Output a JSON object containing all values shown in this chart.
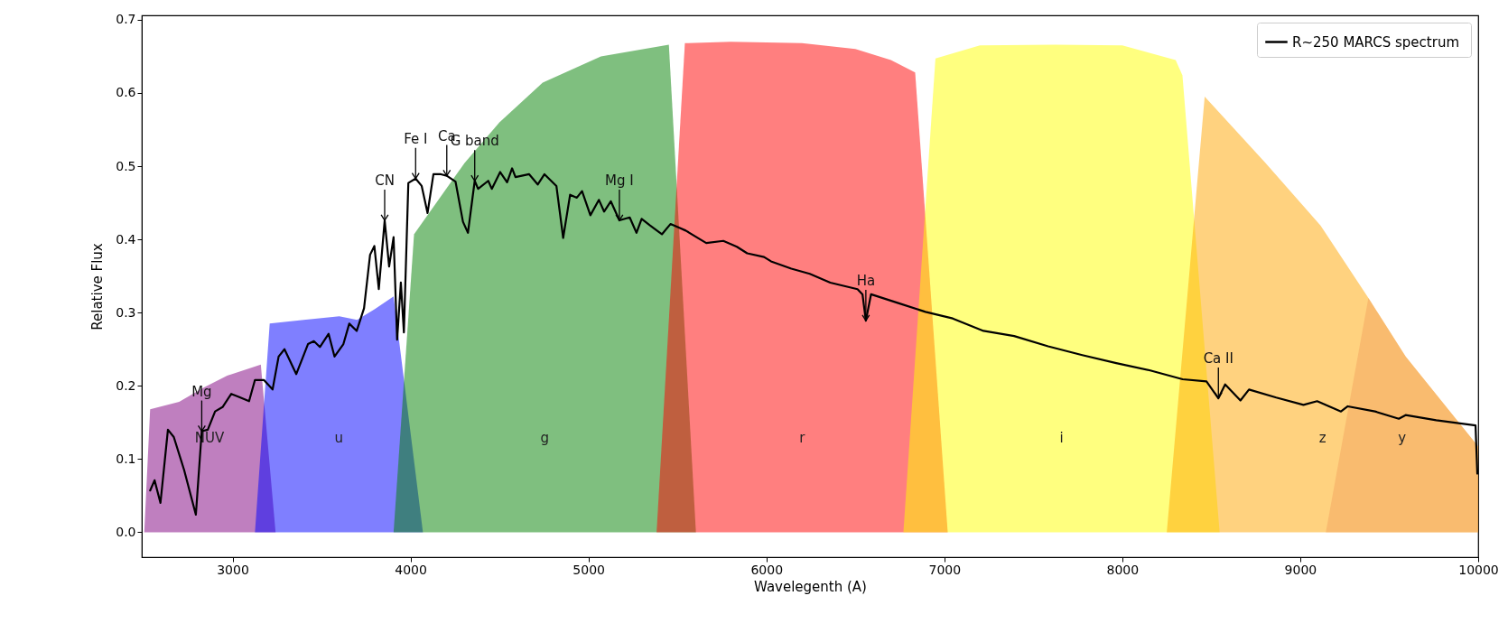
{
  "chart_data": {
    "type": "line",
    "xlabel": "Wavelegenth (A)",
    "ylabel": "Relative Flux",
    "xlim": [
      2490,
      10000
    ],
    "ylim": [
      -0.034,
      0.706
    ],
    "xticks": [
      3000,
      4000,
      5000,
      6000,
      7000,
      8000,
      9000,
      10000
    ],
    "yticks": [
      {
        "value": 0,
        "label": "0.0"
      },
      0.1,
      0.2,
      0.3,
      0.4,
      0.5,
      0.6,
      0.7
    ],
    "legend": "top right",
    "grid": false,
    "series": [
      {
        "name": "NUV",
        "type": "area",
        "color": "#800080",
        "x": [
          2500,
          2504,
          2537,
          2700,
          2840,
          2970,
          3159,
          3242
        ],
        "values": [
          0,
          0.0,
          0.168,
          0.178,
          0.198,
          0.214,
          0.229,
          0
        ]
      },
      {
        "name": "u",
        "type": "area",
        "color": "#0000ff",
        "x": [
          3126,
          3209,
          3400,
          3600,
          3700,
          3800,
          3905,
          4070
        ],
        "values": [
          0,
          0.285,
          0.29,
          0.295,
          0.29,
          0.305,
          0.322,
          0
        ]
      },
      {
        "name": "g",
        "type": "area",
        "color": "#008000",
        "x": [
          3905,
          4020,
          4303,
          4500,
          4743,
          5070,
          5452,
          5604
        ],
        "values": [
          0,
          0.407,
          0.504,
          0.56,
          0.614,
          0.65,
          0.666,
          0
        ]
      },
      {
        "name": "r",
        "type": "area",
        "color": "#ff0000",
        "x": [
          5383,
          5542,
          5800,
          6200,
          6500,
          6700,
          6836,
          7019
        ],
        "values": [
          0,
          0.668,
          0.67,
          0.668,
          0.66,
          0.645,
          0.628,
          0
        ]
      },
      {
        "name": "i",
        "type": "area",
        "color": "#ffff00",
        "x": [
          6770,
          6950,
          7200,
          7622,
          8000,
          8300,
          8338,
          8547
        ],
        "values": [
          0,
          0.647,
          0.665,
          0.666,
          0.665,
          0.645,
          0.624,
          0
        ]
      },
      {
        "name": "z",
        "type": "area",
        "color": "#ffa500",
        "x": [
          8250,
          8463,
          8806,
          9114,
          9383,
          9592,
          10000
        ],
        "values": [
          0,
          0.595,
          0.504,
          0.419,
          0.32,
          0.24,
          0.117
        ]
      },
      {
        "name": "y",
        "type": "area",
        "color": "#f4a460",
        "x": [
          9144,
          9383,
          9592,
          10000
        ],
        "values": [
          0,
          0.32,
          0.24,
          0.117
        ]
      },
      {
        "name": "R~250  MARCS spectrum",
        "color": "#000000",
        "x": [
          2537,
          2562,
          2595,
          2637,
          2670,
          2728,
          2794,
          2827,
          2861,
          2902,
          2944,
          2993,
          3035,
          3093,
          3126,
          3176,
          3225,
          3259,
          3292,
          3358,
          3424,
          3457,
          3491,
          3540,
          3573,
          3623,
          3656,
          3698,
          3739,
          3773,
          3797,
          3822,
          3855,
          3880,
          3905,
          3925,
          3946,
          3963,
          3988,
          4029,
          4063,
          4096,
          4129,
          4171,
          4204,
          4253,
          4295,
          4323,
          4361,
          4380,
          4437,
          4457,
          4504,
          4543,
          4571,
          4590,
          4667,
          4715,
          4753,
          4820,
          4858,
          4897,
          4935,
          4964,
          5011,
          5059,
          5088,
          5126,
          5174,
          5232,
          5270,
          5299,
          5346,
          5413,
          5461,
          5547,
          5662,
          5758,
          5834,
          5892,
          5987,
          6026,
          6140,
          6244,
          6359,
          6512,
          6540,
          6559,
          6588,
          6741,
          6894,
          7047,
          7220,
          7392,
          7583,
          7775,
          7966,
          8157,
          8339,
          8473,
          8540,
          8578,
          8664,
          8712,
          8865,
          9018,
          9095,
          9229,
          9267,
          9420,
          9554,
          9592,
          9764,
          9985,
          9995
        ],
        "values": [
          0.057,
          0.071,
          0.04,
          0.14,
          0.13,
          0.085,
          0.024,
          0.138,
          0.14,
          0.165,
          0.171,
          0.189,
          0.185,
          0.179,
          0.208,
          0.208,
          0.195,
          0.24,
          0.25,
          0.216,
          0.257,
          0.261,
          0.253,
          0.271,
          0.24,
          0.257,
          0.285,
          0.275,
          0.306,
          0.379,
          0.391,
          0.332,
          0.426,
          0.363,
          0.403,
          0.263,
          0.341,
          0.273,
          0.477,
          0.483,
          0.473,
          0.436,
          0.489,
          0.489,
          0.487,
          0.479,
          0.424,
          0.409,
          0.48,
          0.469,
          0.48,
          0.469,
          0.492,
          0.478,
          0.497,
          0.485,
          0.489,
          0.475,
          0.489,
          0.473,
          0.402,
          0.461,
          0.457,
          0.466,
          0.433,
          0.454,
          0.438,
          0.452,
          0.426,
          0.43,
          0.409,
          0.428,
          0.419,
          0.407,
          0.421,
          0.412,
          0.395,
          0.398,
          0.39,
          0.381,
          0.376,
          0.37,
          0.36,
          0.353,
          0.341,
          0.332,
          0.325,
          0.289,
          0.325,
          0.313,
          0.301,
          0.292,
          0.275,
          0.268,
          0.254,
          0.242,
          0.231,
          0.221,
          0.209,
          0.206,
          0.183,
          0.202,
          0.18,
          0.195,
          0.184,
          0.174,
          0.179,
          0.165,
          0.172,
          0.165,
          0.155,
          0.16,
          0.153,
          0.146,
          0.08
        ]
      }
    ],
    "annotations": [
      {
        "text": "Mg",
        "x": 2827,
        "y": 0.138
      },
      {
        "text": "CN",
        "x": 3855,
        "y": 0.426
      },
      {
        "text": "Fe I",
        "x": 4029,
        "y": 0.483
      },
      {
        "text": "Ca",
        "x": 4204,
        "y": 0.487
      },
      {
        "text": "G band",
        "x": 4361,
        "y": 0.48
      },
      {
        "text": "Mg I",
        "x": 5174,
        "y": 0.426
      },
      {
        "text": "Ha",
        "x": 6559,
        "y": 0.289
      },
      {
        "text": "Ca II",
        "x": 8540,
        "y": 0.183
      }
    ]
  }
}
